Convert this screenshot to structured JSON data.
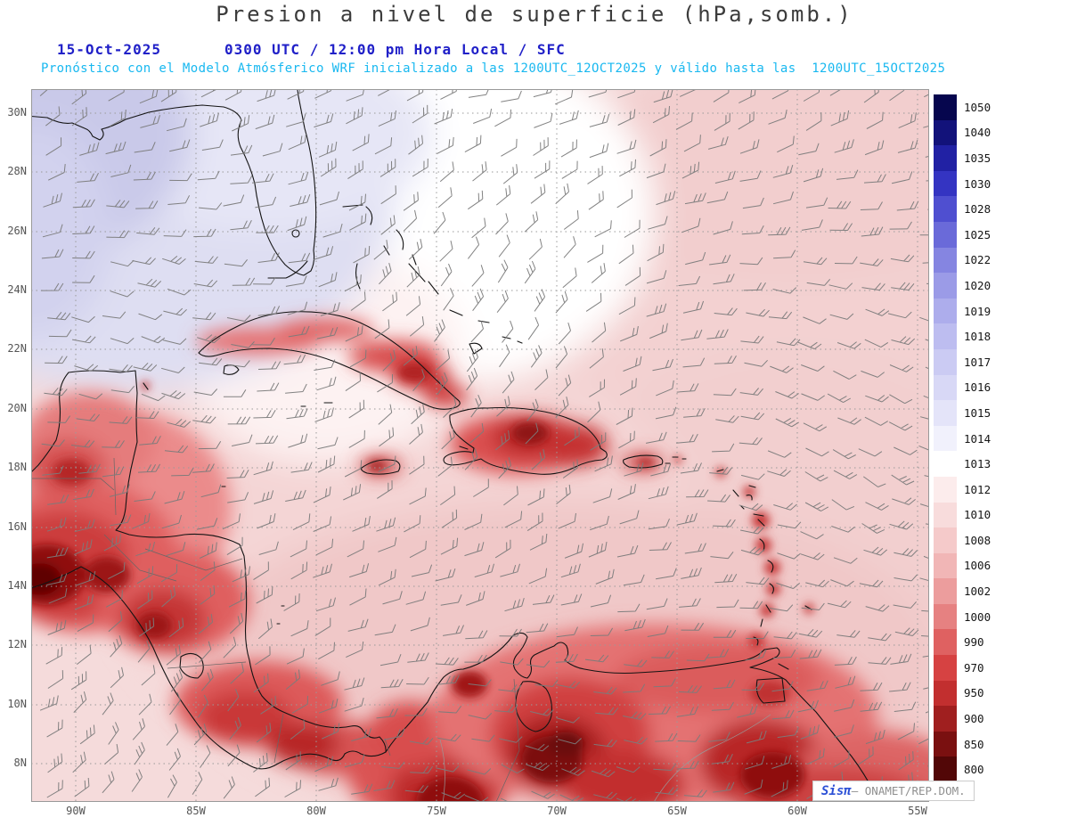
{
  "header": {
    "title": "Presion a nivel de superficie (hPa,somb.)",
    "title_color": "#3c3c3c",
    "date": "15-Oct-2025",
    "time_line": "0300 UTC / 12:00 pm Hora Local / SFC",
    "date_color": "#2020c8",
    "forecast_line": "Pronóstico con el Modelo Atmósferico WRF inicializado a las 1200UTC_12OCT2025 y válido hasta las  1200UTC_15OCT2025",
    "forecast_color": "#18b8f0"
  },
  "map": {
    "lat_labels": [
      "30N",
      "28N",
      "26N",
      "24N",
      "22N",
      "20N",
      "18N",
      "16N",
      "14N",
      "12N",
      "10N",
      "8N"
    ],
    "lon_labels": [
      "90W",
      "85W",
      "80W",
      "75W",
      "70W",
      "65W",
      "60W",
      "55W"
    ]
  },
  "colorbar": {
    "unit": "hPa",
    "entries": [
      {
        "value": "1050",
        "color": "#06064e"
      },
      {
        "value": "1040",
        "color": "#12127a"
      },
      {
        "value": "1035",
        "color": "#2121a4"
      },
      {
        "value": "1030",
        "color": "#3434c2"
      },
      {
        "value": "1028",
        "color": "#4f4fd0"
      },
      {
        "value": "1025",
        "color": "#6a6ad9"
      },
      {
        "value": "1022",
        "color": "#8585e1"
      },
      {
        "value": "1020",
        "color": "#9b9be7"
      },
      {
        "value": "1019",
        "color": "#adadec"
      },
      {
        "value": "1018",
        "color": "#bdbdf0"
      },
      {
        "value": "1017",
        "color": "#cbcbf3"
      },
      {
        "value": "1016",
        "color": "#d8d8f6"
      },
      {
        "value": "1015",
        "color": "#e4e4f9"
      },
      {
        "value": "1014",
        "color": "#f1f1fc"
      },
      {
        "value": "1013",
        "color": "#ffffff"
      },
      {
        "value": "1012",
        "color": "#fcecec"
      },
      {
        "value": "1010",
        "color": "#f8dcdc"
      },
      {
        "value": "1008",
        "color": "#f5caca"
      },
      {
        "value": "1006",
        "color": "#f1b6b6"
      },
      {
        "value": "1002",
        "color": "#ec9d9d"
      },
      {
        "value": "1000",
        "color": "#e68181"
      },
      {
        "value": "990",
        "color": "#df6161"
      },
      {
        "value": "970",
        "color": "#d64242"
      },
      {
        "value": "950",
        "color": "#c22f2f"
      },
      {
        "value": "900",
        "color": "#a01f1f"
      },
      {
        "value": "850",
        "color": "#7a1010"
      },
      {
        "value": "800",
        "color": "#520707"
      }
    ]
  },
  "watermark": {
    "brand": "Sisπ",
    "rest": "— ONAMET/REP.DOM.",
    "brand_color": "#2b50d6",
    "text_color": "#8f8f8f"
  }
}
